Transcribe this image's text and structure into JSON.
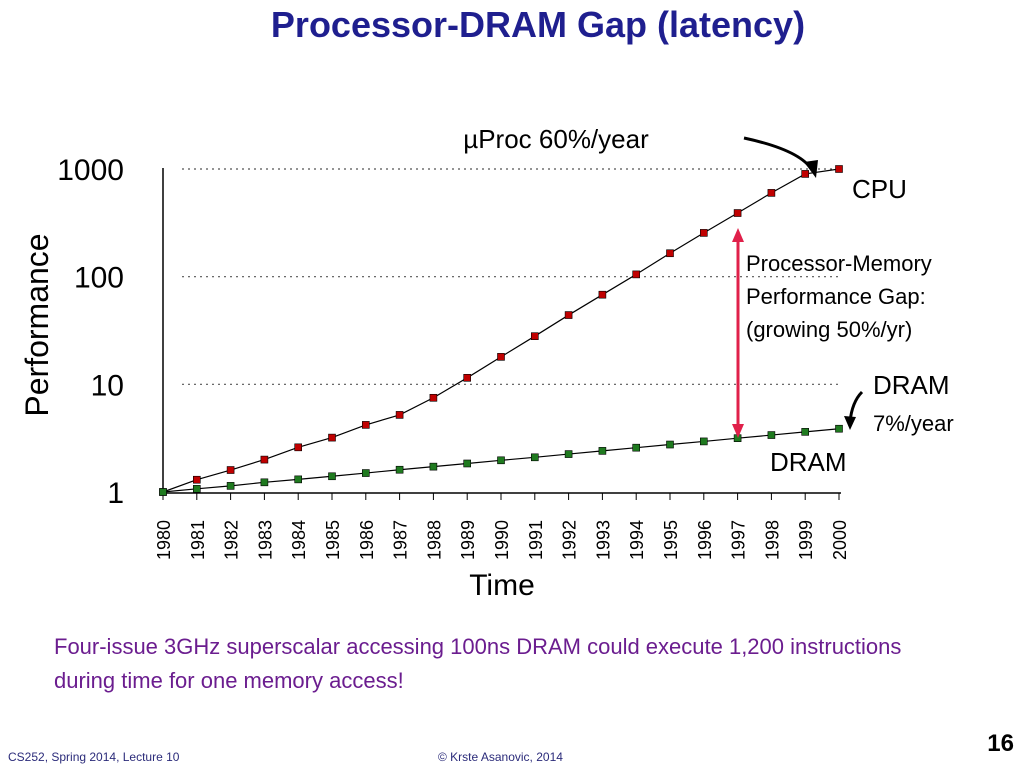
{
  "slide": {
    "title": "Processor-DRAM Gap (latency)",
    "note": "Four-issue 3GHz superscalar accessing 100ns DRAM could execute 1,200 instructions during time for one memory access!",
    "footer_left": "CS252, Spring 2014, Lecture 10",
    "footer_center": "© Krste Asanovic, 2014",
    "page_number": "16"
  },
  "chart_data": {
    "type": "line",
    "xlabel": "Time",
    "ylabel": "Performance",
    "yscale": "log",
    "ylim": [
      1,
      1000
    ],
    "y_ticks": [
      "1",
      "10",
      "100",
      "1000"
    ],
    "x": [
      "1980",
      "1981",
      "1982",
      "1983",
      "1984",
      "1985",
      "1986",
      "1987",
      "1988",
      "1989",
      "1990",
      "1991",
      "1992",
      "1993",
      "1994",
      "1995",
      "1996",
      "1997",
      "1998",
      "1999",
      "2000"
    ],
    "grid": "dotted lines at 10, 100 and 1000",
    "series": [
      {
        "name": "CPU",
        "color": "#c00000",
        "values": [
          1,
          1.3,
          1.6,
          2.0,
          2.6,
          3.2,
          4.2,
          5.2,
          7.5,
          11.5,
          18,
          28,
          44,
          68,
          105,
          165,
          255,
          390,
          600,
          900,
          1000
        ]
      },
      {
        "name": "DRAM",
        "color": "#1f7a1f",
        "values": [
          1,
          1.07,
          1.14,
          1.23,
          1.31,
          1.4,
          1.5,
          1.61,
          1.72,
          1.84,
          1.97,
          2.1,
          2.25,
          2.41,
          2.58,
          2.76,
          2.95,
          3.16,
          3.38,
          3.62,
          3.87
        ]
      }
    ],
    "annotations": {
      "cpu_rate": "µProc 60%/year",
      "cpu_label": "CPU",
      "gap": [
        "Processor-Memory",
        "Performance Gap:",
        "(growing 50%/yr)"
      ],
      "dram_rate_name": "DRAM",
      "dram_rate": "7%/year",
      "dram_label": "DRAM"
    },
    "gap_arrow_color": "#e0204a"
  }
}
